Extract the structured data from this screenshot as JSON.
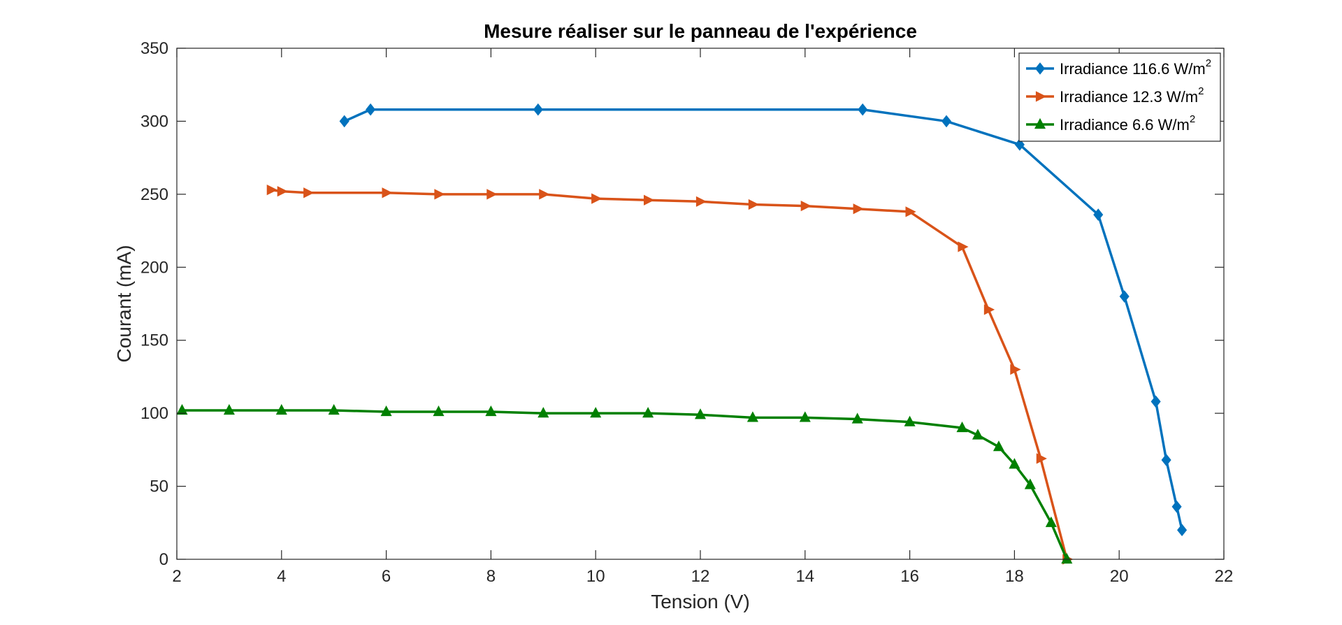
{
  "chart_data": {
    "type": "line",
    "title": "Mesure réaliser sur le panneau de l'expérience",
    "xlabel": "Tension (V)",
    "ylabel": "Courant (mA)",
    "xlim": [
      2,
      22
    ],
    "ylim": [
      0,
      350
    ],
    "xticks": [
      2,
      4,
      6,
      8,
      10,
      12,
      14,
      16,
      18,
      20,
      22
    ],
    "yticks": [
      0,
      50,
      100,
      150,
      200,
      250,
      300,
      350
    ],
    "grid": false,
    "legend_position": "top-right",
    "series": [
      {
        "name": "Irradiance 116.6 W/m",
        "name_sup": "2",
        "color": "#0072BD",
        "marker": "diamond",
        "x": [
          5.2,
          5.7,
          8.9,
          15.1,
          16.7,
          18.1,
          19.6,
          20.1,
          20.7,
          20.9,
          21.1,
          21.2
        ],
        "y": [
          300,
          308,
          308,
          308,
          300,
          284,
          236,
          180,
          108,
          68,
          36,
          20
        ]
      },
      {
        "name": "Irradiance 12.3 W/m",
        "name_sup": "2",
        "color": "#D95319",
        "marker": "triangle-right",
        "x": [
          3.8,
          4.0,
          4.5,
          6.0,
          7.0,
          8.0,
          9.0,
          10.0,
          11.0,
          12.0,
          13.0,
          14.0,
          15.0,
          16.0,
          17.0,
          17.5,
          18.0,
          18.5,
          19.0
        ],
        "y": [
          253,
          252,
          251,
          251,
          250,
          250,
          250,
          247,
          246,
          245,
          243,
          242,
          240,
          238,
          214,
          171,
          130,
          69,
          0
        ]
      },
      {
        "name": "Irradiance 6.6 W/m",
        "name_sup": "2",
        "color": "#008000",
        "marker": "triangle-up",
        "x": [
          2.1,
          3.0,
          4.0,
          5.0,
          6.0,
          7.0,
          8.0,
          9.0,
          10.0,
          11.0,
          12.0,
          13.0,
          14.0,
          15.0,
          16.0,
          17.0,
          17.3,
          17.7,
          18.0,
          18.3,
          18.7,
          19.0
        ],
        "y": [
          102,
          102,
          102,
          102,
          101,
          101,
          101,
          100,
          100,
          100,
          99,
          97,
          97,
          96,
          94,
          90,
          85,
          77,
          65,
          51,
          25,
          0
        ]
      }
    ]
  }
}
